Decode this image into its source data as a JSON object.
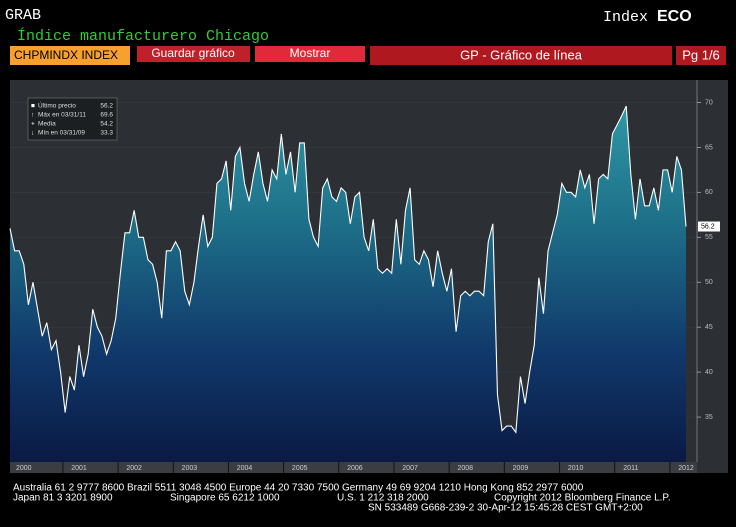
{
  "header": {
    "title": "GRAB",
    "subtitle": "Índice manufacturero Chicago",
    "index": "Index",
    "eco": "ECO"
  },
  "toolbar": {
    "ticker": "CHPMINDX INDEX",
    "save": "Guardar gráfico",
    "show": "Mostrar",
    "view": "GP - Gráfico de línea",
    "page": "Pg 1/6"
  },
  "legend": [
    {
      "label": "Último precio",
      "value": 56.2
    },
    {
      "label": "Máx en 03/31/11",
      "value": 69.6
    },
    {
      "label": "Media",
      "value": 54.2
    },
    {
      "label": "Mín en 03/31/09",
      "value": 33.3
    }
  ],
  "chart_data": {
    "type": "area",
    "color": "#ffffff",
    "categories": [
      null,
      null,
      null,
      "2000",
      null,
      null,
      null,
      null,
      null,
      null,
      null,
      null,
      null,
      null,
      null,
      "2001",
      null,
      null,
      null,
      null,
      null,
      null,
      null,
      null,
      null,
      null,
      null,
      "2002",
      null,
      null,
      null,
      null,
      null,
      null,
      null,
      null,
      null,
      null,
      null,
      "2003",
      null,
      null,
      null,
      null,
      null,
      null,
      null,
      null,
      null,
      null,
      null,
      "2004",
      null,
      null,
      null,
      null,
      null,
      null,
      null,
      null,
      null,
      null,
      null,
      "2005",
      null,
      null,
      null,
      null,
      null,
      null,
      null,
      null,
      null,
      null,
      null,
      "2006",
      null,
      null,
      null,
      null,
      null,
      null,
      null,
      null,
      null,
      null,
      null,
      "2007",
      null,
      null,
      null,
      null,
      null,
      null,
      null,
      null,
      null,
      null,
      null,
      "2008",
      null,
      null,
      null,
      null,
      null,
      null,
      null,
      null,
      null,
      null,
      null,
      "2009",
      null,
      null,
      null,
      null,
      null,
      null,
      null,
      null,
      null,
      null,
      null,
      "2010",
      null,
      null,
      null,
      null,
      null,
      null,
      null,
      null,
      null,
      null,
      null,
      "2011",
      null,
      null,
      null,
      null,
      null,
      null,
      null,
      null,
      null,
      null,
      null,
      "2012"
    ],
    "values": [
      56,
      53.5,
      53.5,
      52,
      47.5,
      50,
      47,
      44,
      45.5,
      42.5,
      43.5,
      40,
      35.5,
      39.5,
      38,
      43,
      39.5,
      42,
      47,
      45,
      44,
      42,
      43.5,
      46,
      51,
      55.5,
      55.5,
      58,
      55,
      55,
      52.5,
      52,
      50,
      46,
      53.5,
      53.5,
      54.5,
      53.5,
      49,
      47.5,
      50,
      54,
      57.5,
      54,
      55,
      61,
      61.5,
      63.5,
      58,
      64,
      65,
      61,
      59,
      62,
      64.5,
      61,
      59,
      62.5,
      61.5,
      66.5,
      62,
      64.5,
      60,
      65.5,
      65.5,
      57,
      55,
      54,
      60.5,
      61.5,
      59.5,
      59,
      60.5,
      60,
      56.5,
      59.5,
      60,
      55,
      53.5,
      57,
      51.5,
      51,
      51.5,
      51,
      57,
      52,
      58,
      60.5,
      52.5,
      52,
      53.5,
      52.5,
      49.5,
      53.5,
      51,
      49,
      51.5,
      44.5,
      48.5,
      49,
      48.5,
      49,
      49,
      48.5,
      54.5,
      56.5,
      37.5,
      33.5,
      34,
      34,
      33.3,
      39.5,
      36.5,
      40,
      43,
      50.5,
      46.5,
      53.5,
      55.5,
      57.5,
      61,
      60,
      60,
      59.5,
      62.5,
      60.5,
      62,
      56.5,
      61.5,
      62,
      61.5,
      66.5,
      67.5,
      68.5,
      69.6,
      62,
      57,
      61.5,
      58.5,
      58.5,
      60.5,
      58,
      62.5,
      62.5,
      60,
      64,
      62.5,
      56.2
    ],
    "ylim": [
      30,
      72.5
    ],
    "yticks": [
      35,
      40,
      45,
      50,
      55,
      60,
      65,
      70
    ]
  },
  "footer": [
    "Australia 61 2 9777 8600 Brazil 5511 3048 4500 Europe 44 20 7330 7500 Germany 49 69 9204 1210 Hong Kong 852 2977 6000",
    "Japan 81 3 3201 8900",
    "Singapore 65 6212 1000",
    "U.S. 1 212 318 2000",
    "Copyright 2012 Bloomberg Finance L.P.",
    "SN 533489 G668-239-2 30-Apr-12 15:45:28 CEST GMT+2:00"
  ]
}
